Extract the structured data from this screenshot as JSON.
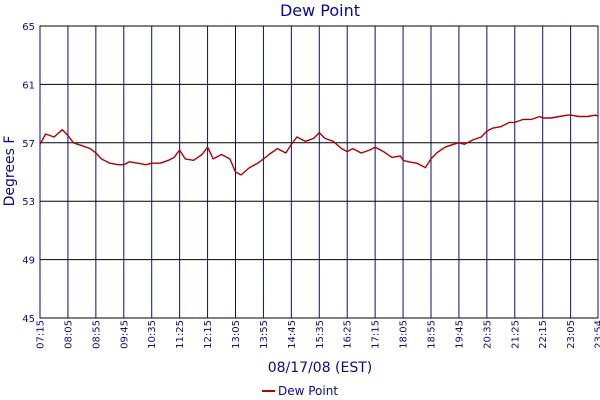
{
  "chart_data": {
    "type": "line",
    "title": "Dew Point",
    "xlabel": "08/17/08 (EST)",
    "ylabel": "Degrees F",
    "ylim": [
      45,
      65
    ],
    "yticks": [
      45,
      49,
      53,
      57,
      61,
      65
    ],
    "xlim": [
      "07:15",
      "23:54"
    ],
    "xticks": [
      "07:15",
      "08:05",
      "08:55",
      "09:45",
      "10:35",
      "11:25",
      "12:15",
      "13:05",
      "13:55",
      "14:45",
      "15:35",
      "16:25",
      "17:15",
      "18:05",
      "18:55",
      "19:45",
      "20:35",
      "21:25",
      "22:15",
      "23:05",
      "23:54"
    ],
    "grid": true,
    "legend": "bottom",
    "colors": {
      "series": "#b00000",
      "grid_v": "#0a0a8c",
      "grid_h": "#000000",
      "text": "#0a0a8c"
    },
    "series": [
      {
        "name": "Dew Point",
        "x": [
          "07:15",
          "07:25",
          "07:40",
          "07:55",
          "08:05",
          "08:15",
          "08:30",
          "08:45",
          "08:55",
          "09:05",
          "09:20",
          "09:35",
          "09:45",
          "09:55",
          "10:10",
          "10:25",
          "10:35",
          "10:50",
          "11:05",
          "11:15",
          "11:25",
          "11:35",
          "11:50",
          "12:05",
          "12:15",
          "12:25",
          "12:40",
          "12:55",
          "13:05",
          "13:15",
          "13:30",
          "13:45",
          "13:55",
          "14:05",
          "14:20",
          "14:35",
          "14:45",
          "14:55",
          "15:10",
          "15:25",
          "15:35",
          "15:45",
          "16:00",
          "16:15",
          "16:25",
          "16:35",
          "16:50",
          "17:05",
          "17:15",
          "17:30",
          "17:45",
          "18:00",
          "18:05",
          "18:15",
          "18:30",
          "18:45",
          "18:55",
          "19:05",
          "19:20",
          "19:35",
          "19:45",
          "19:55",
          "20:10",
          "20:25",
          "20:35",
          "20:45",
          "21:00",
          "21:15",
          "21:25",
          "21:40",
          "21:55",
          "22:10",
          "22:15",
          "22:30",
          "22:45",
          "23:00",
          "23:05",
          "23:20",
          "23:35",
          "23:50",
          "23:54"
        ],
        "values": [
          56.9,
          57.6,
          57.4,
          57.9,
          57.5,
          57.0,
          56.8,
          56.6,
          56.3,
          55.9,
          55.6,
          55.5,
          55.5,
          55.7,
          55.6,
          55.5,
          55.6,
          55.6,
          55.8,
          56.0,
          56.5,
          55.9,
          55.8,
          56.2,
          56.7,
          55.9,
          56.2,
          55.9,
          55.0,
          54.8,
          55.3,
          55.6,
          55.9,
          56.2,
          56.6,
          56.3,
          56.9,
          57.4,
          57.1,
          57.3,
          57.7,
          57.3,
          57.1,
          56.6,
          56.4,
          56.6,
          56.3,
          56.5,
          56.7,
          56.4,
          56.0,
          56.1,
          55.8,
          55.7,
          55.6,
          55.3,
          55.9,
          56.3,
          56.7,
          56.9,
          57.0,
          56.9,
          57.2,
          57.4,
          57.8,
          58.0,
          58.1,
          58.4,
          58.4,
          58.6,
          58.6,
          58.8,
          58.7,
          58.7,
          58.8,
          58.9,
          58.9,
          58.8,
          58.8,
          58.9,
          58.8
        ]
      }
    ]
  }
}
